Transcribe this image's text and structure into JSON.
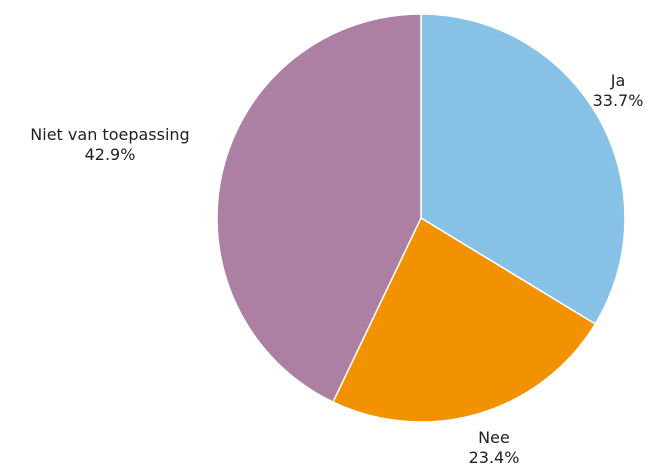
{
  "chart_data": {
    "type": "pie",
    "title": "",
    "start_angle_deg": 0,
    "direction": "clockwise",
    "slices": [
      {
        "label": "Ja",
        "value": 33.7,
        "value_label": "33.7%",
        "color": "#87c2e6"
      },
      {
        "label": "Nee",
        "value": 23.4,
        "value_label": "23.4%",
        "color": "#f39200"
      },
      {
        "label": "Niet van toepassing",
        "value": 42.9,
        "value_label": "42.9%",
        "color": "#ad7fa3"
      }
    ]
  }
}
